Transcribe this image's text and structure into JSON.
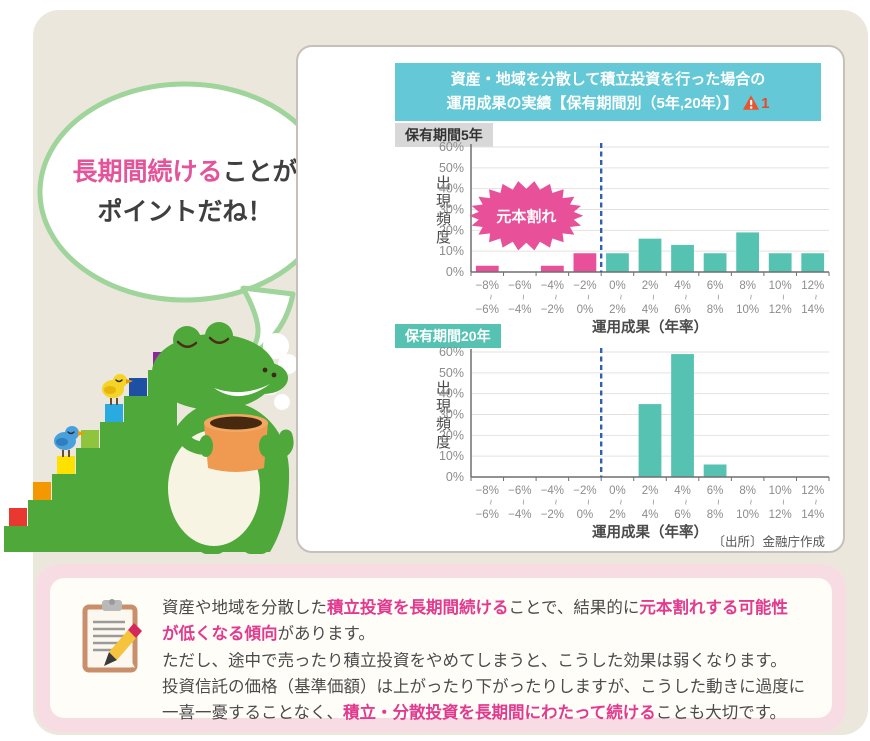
{
  "palette": {
    "beige_bg": "#ece7dd",
    "pink_panel_bg": "#f8dce3",
    "card_border": "#c5c1ba",
    "title_bg": "#65c8d7",
    "teal_bar": "#56c2b2",
    "pink_bar": "#e8509a",
    "divider_blue": "#2e62b0",
    "highlight_pink": "#e23a8e",
    "bubble_green": "#9fd49b",
    "croc_green": "#4fa83a"
  },
  "speech_bubble": {
    "line1_highlight": "長期間続ける",
    "line1_rest": "ことが",
    "line2": "ポイントだね！"
  },
  "chart_card": {
    "title_line1": "資産・地域を分散して積立投資を行った場合の",
    "title_line2": "運用成果の実績【保有期間別（5年,20年）】",
    "warning_icon": "warning-triangle-icon",
    "warning_number": "1",
    "source": "〔出所〕金融庁作成"
  },
  "chart_data": [
    {
      "type": "bar",
      "label": "保有期間5年",
      "ylabel": "出現頻度",
      "xlabel": "運用成果（年率）",
      "ylim": [
        0,
        60
      ],
      "ytick_step": 10,
      "yticks": [
        "0%",
        "10%",
        "20%",
        "30%",
        "40%",
        "50%",
        "60%"
      ],
      "range_separator": "~",
      "categories": [
        [
          "−8%",
          "−6%"
        ],
        [
          "−6%",
          "−4%"
        ],
        [
          "−4%",
          "−2%"
        ],
        [
          "−2%",
          "0%"
        ],
        [
          "0%",
          "2%"
        ],
        [
          "2%",
          "4%"
        ],
        [
          "4%",
          "6%"
        ],
        [
          "6%",
          "8%"
        ],
        [
          "8%",
          "10%"
        ],
        [
          "10%",
          "12%"
        ],
        [
          "12%",
          "14%"
        ]
      ],
      "values": [
        3,
        0,
        3,
        9,
        9,
        16,
        13,
        9,
        19,
        9,
        9
      ],
      "bar_colors": [
        "#e8509a",
        "#e8509a",
        "#e8509a",
        "#e8509a",
        "#56c2b2",
        "#56c2b2",
        "#56c2b2",
        "#56c2b2",
        "#56c2b2",
        "#56c2b2",
        "#56c2b2"
      ],
      "zero_divider_index": 4,
      "divider_color": "#2e62b0",
      "grid": true,
      "annotation": {
        "text": "元本割れ",
        "shape": "starburst",
        "color": "#e8509a",
        "text_color": "#ffffff"
      }
    },
    {
      "type": "bar",
      "label": "保有期間20年",
      "ylabel": "出現頻度",
      "xlabel": "運用成果（年率）",
      "ylim": [
        0,
        60
      ],
      "ytick_step": 10,
      "yticks": [
        "0%",
        "10%",
        "20%",
        "30%",
        "40%",
        "50%",
        "60%"
      ],
      "range_separator": "~",
      "categories": [
        [
          "−8%",
          "−6%"
        ],
        [
          "−6%",
          "−4%"
        ],
        [
          "−4%",
          "−2%"
        ],
        [
          "−2%",
          "0%"
        ],
        [
          "0%",
          "2%"
        ],
        [
          "2%",
          "4%"
        ],
        [
          "4%",
          "6%"
        ],
        [
          "6%",
          "8%"
        ],
        [
          "8%",
          "10%"
        ],
        [
          "10%",
          "12%"
        ],
        [
          "12%",
          "14%"
        ]
      ],
      "values": [
        0,
        0,
        0,
        0,
        0,
        35,
        59,
        6,
        0,
        0,
        0
      ],
      "bar_colors": [
        "#56c2b2",
        "#56c2b2",
        "#56c2b2",
        "#56c2b2",
        "#56c2b2",
        "#56c2b2",
        "#56c2b2",
        "#56c2b2",
        "#56c2b2",
        "#56c2b2",
        "#56c2b2"
      ],
      "zero_divider_index": 4,
      "divider_color": "#2e62b0",
      "grid": true,
      "annotation": null
    }
  ],
  "note_panel": {
    "icon": "clipboard-pencil-icon",
    "lines": [
      {
        "segments": [
          {
            "text": "資産や地域を分散した",
            "style": "normal"
          },
          {
            "text": "積立投資を長期間続ける",
            "style": "highlight"
          },
          {
            "text": "ことで、結果的に",
            "style": "normal"
          },
          {
            "text": "元本割れする可能性",
            "style": "highlight"
          }
        ]
      },
      {
        "segments": [
          {
            "text": "が低くなる傾向",
            "style": "highlight"
          },
          {
            "text": "があります。",
            "style": "normal"
          }
        ]
      },
      {
        "segments": [
          {
            "text": "ただし、途中で売ったり積立投資をやめてしまうと、こうした効果は弱くなります。",
            "style": "normal"
          }
        ]
      },
      {
        "segments": [
          {
            "text": "投資信託の価格（基準価額）は上がったり下がったりしますが、こうした動きに過度に",
            "style": "normal"
          }
        ]
      },
      {
        "segments": [
          {
            "text": "一喜一憂することなく、",
            "style": "normal"
          },
          {
            "text": "積立・分散投資を長期間にわたって続ける",
            "style": "highlight"
          },
          {
            "text": "ことも大切です。",
            "style": "normal"
          }
        ]
      }
    ]
  },
  "character": {
    "crocodile": "crocodile-with-mug",
    "birds": [
      "blue-bird",
      "yellow-bird"
    ],
    "stairs_block_colors": [
      "#e8382f",
      "#f39800",
      "#ffe100",
      "#8fc43f",
      "#29abe2",
      "#1d50a2",
      "#8f26a0"
    ]
  }
}
